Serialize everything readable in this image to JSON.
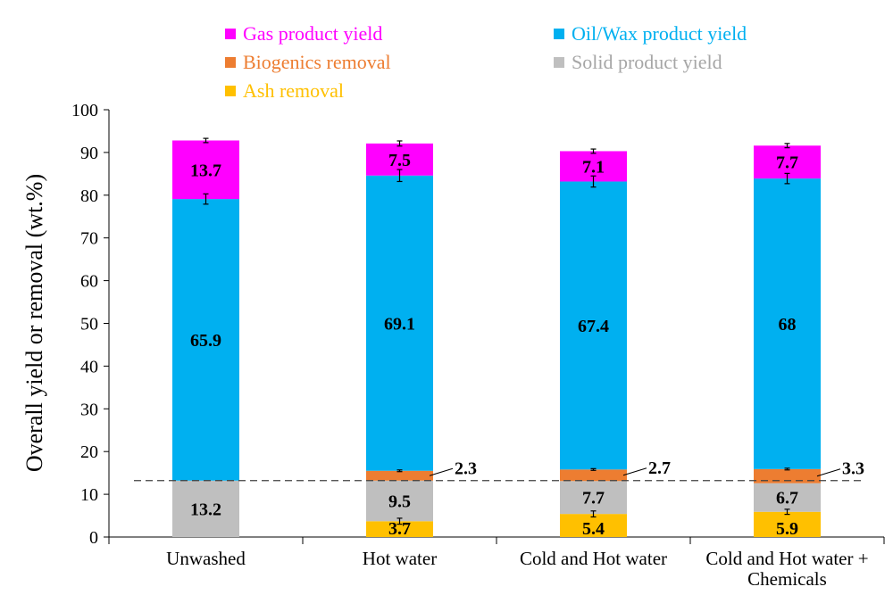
{
  "chart_data": {
    "type": "bar",
    "stacked": true,
    "categories": [
      "Unwashed",
      "Hot water",
      "Cold and Hot water",
      "Cold and Hot water + Chemicals"
    ],
    "category_lines": [
      [
        "Unwashed"
      ],
      [
        "Hot water"
      ],
      [
        "Cold and Hot water"
      ],
      [
        "Cold and Hot water +",
        "Chemicals"
      ]
    ],
    "ylabel": "Overall yield or removal (wt.%)",
    "xlabel": "",
    "ylim": [
      0,
      100
    ],
    "yticks": [
      0,
      10,
      20,
      30,
      40,
      50,
      60,
      70,
      80,
      90,
      100
    ],
    "grid": false,
    "legend_position": "top",
    "stack_order": [
      "ash",
      "solid",
      "biogenics",
      "oil",
      "gas"
    ],
    "series": [
      {
        "key": "gas",
        "name": "Gas product yield",
        "color": "#FF00FF",
        "label_color": "#000000",
        "values": [
          13.7,
          7.5,
          7.1,
          7.7
        ],
        "labels": [
          "13.7",
          "7.5",
          "7.1",
          "7.7"
        ],
        "error": [
          0.5,
          0.6,
          0.5,
          0.5
        ]
      },
      {
        "key": "oil",
        "name": "Oil/Wax product yield",
        "color": "#00B0F0",
        "label_color": "#000000",
        "values": [
          65.9,
          69.1,
          67.4,
          68
        ],
        "labels": [
          "65.9",
          "69.1",
          "67.4",
          "68"
        ],
        "error": [
          1.2,
          1.4,
          1.3,
          1.2
        ]
      },
      {
        "key": "biogenics",
        "name": "Biogenics removal",
        "color": "#ED7D31",
        "label_color": "#000000",
        "values": [
          0,
          2.3,
          2.7,
          3.3
        ],
        "labels": [
          "",
          "2.3",
          "2.7",
          "3.3"
        ],
        "error": [
          0,
          0.2,
          0.2,
          0.2
        ]
      },
      {
        "key": "solid",
        "name": "Solid product yield",
        "color": "#BFBFBF",
        "label_color": "#000000",
        "values": [
          13.2,
          9.5,
          7.7,
          6.7
        ],
        "labels": [
          "13.2",
          "9.5",
          "7.7",
          "6.7"
        ],
        "error": [
          0,
          0,
          0,
          0
        ]
      },
      {
        "key": "ash",
        "name": "Ash removal",
        "color": "#FFC000",
        "label_color": "#000000",
        "values": [
          0,
          3.7,
          5.4,
          5.9
        ],
        "labels": [
          "",
          "3.7",
          "5.4",
          "5.9"
        ],
        "error": [
          0,
          0.7,
          0.7,
          0.6
        ]
      }
    ],
    "reference_line": {
      "y": 13.2,
      "style": "dashed"
    }
  }
}
